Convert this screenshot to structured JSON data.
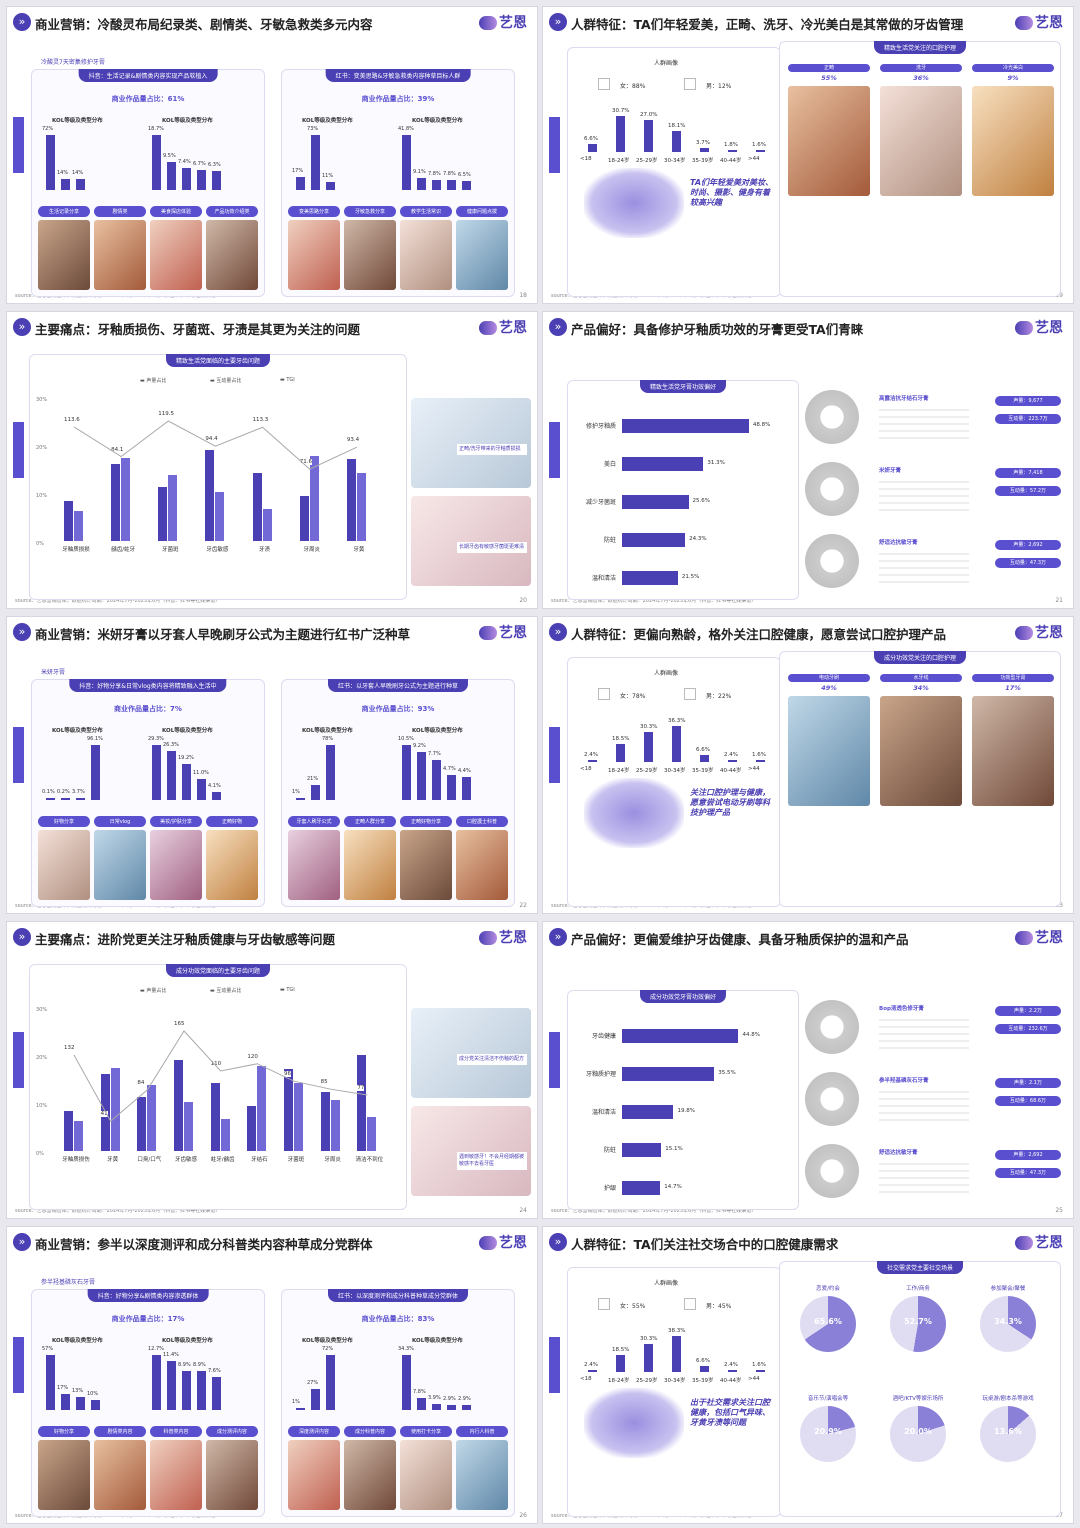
{
  "slides": [
    {
      "title": "商业营销：冷酸灵布局纪录类、剧情类、牙敏急救类多元内容",
      "page": "18",
      "sub": "冷酸灵7天密集修护牙膏",
      "left": {
        "pt": "抖音：生活记录&剧情类内容实现产品软植入",
        "share": "商业作品量占比：61%",
        "bars1": [
          "72%",
          "14%",
          "14%"
        ],
        "bars2": [
          "18.7%",
          "9.5%",
          "7.4%",
          "6.7%",
          "6.3%"
        ],
        "tags": [
          "生活记录分享",
          "剧情类",
          "美食探店体验",
          "产品功效介绍类"
        ]
      },
      "right": {
        "pt": "红书：变美思路&牙敏急救类内容种草目标人群",
        "share": "商业作品量占比：39%",
        "bars1": [
          "17%",
          "73%",
          "11%"
        ],
        "bars2": [
          "41.8%",
          "9.1%",
          "7.8%",
          "7.8%",
          "6.5%"
        ],
        "tags": [
          "变美思路分享",
          "牙敏急救分享",
          "教学生活常识",
          "健康问题点拨"
        ]
      }
    },
    {
      "title": "人群特征：TA们年轻爱美，正畸、洗牙、冷光美白是其常做的牙齿管理",
      "page": "19",
      "female": "女：88%",
      "male": "男：12%",
      "age_vals": [
        "6.6%",
        "30.7%",
        "27.0%",
        "18.1%",
        "3.7%",
        "1.8%",
        "1.6%"
      ],
      "age_labels": [
        "<18",
        "18-24岁",
        "25-29岁",
        "30-34岁",
        "35-39岁",
        "40-44岁",
        ">44"
      ],
      "hl": "TA们年轻爱美对美妆、时尚、摄影、健身有着较高兴趣",
      "right_title": "精致生活党关注的口腔护理",
      "tabs": [
        "正畸",
        "洗牙",
        "冷光美白"
      ],
      "pcts": [
        "55%",
        "36%",
        "9%"
      ],
      "portrait": "人群画像"
    },
    {
      "title": "主要痛点：牙釉质损伤、牙菌斑、牙渍是其更为关注的问题",
      "page": "20",
      "chart_title": "精致生活党面临的主要牙齿问题",
      "legend": [
        "声量占比",
        "互动量占比",
        "TGI"
      ],
      "cats": [
        "牙釉质损损",
        "龋齿/蛀牙",
        "牙菌斑",
        "牙齿敏感",
        "牙渍",
        "牙周炎",
        "牙黄"
      ],
      "tgi": [
        "113.6",
        "84.1",
        "119.5",
        "94.4",
        "113.3",
        "71.6",
        "93.4"
      ],
      "side_cap1": "正畸/洗牙带来的牙釉质损损",
      "side_cap2": "长期牙齿有敏感牙菌斑更难清"
    },
    {
      "title": "产品偏好：具备修护牙釉质功效的牙膏更受TA们青睐",
      "page": "21",
      "chart_title": "精致生活党牙膏功效偏好",
      "rows": [
        {
          "l": "修护牙釉质",
          "v": "48.8%",
          "n": 48.8
        },
        {
          "l": "美白",
          "v": "31.3%",
          "n": 31.3
        },
        {
          "l": "减少牙菌斑",
          "v": "25.6%",
          "n": 25.6
        },
        {
          "l": "防蛀",
          "v": "24.3%",
          "n": 24.3
        },
        {
          "l": "温和清洁",
          "v": "21.5%",
          "n": 21.5
        }
      ],
      "prods": [
        {
          "t": "高露洁抗牙结石牙膏",
          "s": "声量：9,677",
          "i": "互动量：223.7万"
        },
        {
          "t": "米妍牙膏",
          "s": "声量：7,418",
          "i": "互动量：57.2万"
        },
        {
          "t": "舒适达抗敏牙膏",
          "s": "声量：2,692",
          "i": "互动量：47.3万"
        }
      ]
    },
    {
      "title": "商业营销：米妍牙膏以牙套人早晚刷牙公式为主题进行红书广泛种草",
      "page": "22",
      "sub": "米妍牙膏",
      "left": {
        "pt": "抖音：好物分享&日常vlog类内容将精致融入生活中",
        "share": "商业作品量占比：7%",
        "bars1": [
          "0.1%",
          "0.2%",
          "3.7%",
          "96.1%"
        ],
        "bars2": [
          "29.3%",
          "26.3%",
          "19.2%",
          "11.0%",
          "4.1%"
        ],
        "tags": [
          "好物分享",
          "日常vlog",
          "美妆/护肤分享",
          "正畸好物"
        ]
      },
      "right": {
        "pt": "红书：以牙套人早晚刷牙公式为主题进行种草",
        "share": "商业作品量占比：93%",
        "bars1": [
          "1%",
          "21%",
          "78%"
        ],
        "bars2": [
          "10.5%",
          "9.2%",
          "7.7%",
          "4.7%",
          "4.4%"
        ],
        "tags": [
          "牙套人刷牙公式",
          "正畸人群分享",
          "正畸好物分享",
          "口腔護士科普"
        ]
      }
    },
    {
      "title": "人群特征：更偏向熟龄，格外关注口腔健康，愿意尝试口腔护理产品",
      "page": "23",
      "female": "女：78%",
      "male": "男：22%",
      "age_vals": [
        "2.4%",
        "18.5%",
        "30.3%",
        "36.3%",
        "6.6%",
        "2.4%",
        "1.6%"
      ],
      "age_labels": [
        "<18",
        "18-24岁",
        "25-29岁",
        "30-34岁",
        "35-39岁",
        "40-44岁",
        ">44"
      ],
      "hl": "关注口腔护理与健康，愿意尝试电动牙刷等科技护理产品",
      "right_title": "成分功效党关注的口腔护理",
      "tabs": [
        "电动牙刷",
        "水牙线",
        "功效型牙膏"
      ],
      "pcts": [
        "49%",
        "34%",
        "17%"
      ],
      "portrait": "人群画像"
    },
    {
      "title": "主要痛点：进阶党更关注牙釉质健康与牙齿敏感等问题",
      "page": "24",
      "chart_title": "成分功效党面临的主要牙齿问题",
      "legend": [
        "声量占比",
        "互动量占比",
        "TGI"
      ],
      "cats": [
        "牙釉质损伤",
        "牙黄",
        "口臭/口气",
        "牙齿敏感",
        "蛀牙/龋齿",
        "牙结石",
        "牙菌斑",
        "牙周炎",
        "清洁不到位"
      ],
      "tgi": [
        "132",
        "41",
        "84",
        "165",
        "110",
        "120",
        "96",
        "85",
        "77"
      ],
      "side_cap1": "成分党关注清洁不伤釉的配方",
      "side_cap2": "遇到敏感牙！不会月经期都被敏感不去看牙医"
    },
    {
      "title": "产品偏好：更偏爱维护牙齿健康、具备牙釉质保护的温和产品",
      "page": "25",
      "chart_title": "成分功效党牙膏功效偏好",
      "rows": [
        {
          "l": "牙齿健康",
          "v": "44.8%",
          "n": 44.8
        },
        {
          "l": "牙釉质护理",
          "v": "35.5%",
          "n": 35.5
        },
        {
          "l": "温和清洁",
          "v": "19.8%",
          "n": 19.8
        },
        {
          "l": "防蛀",
          "v": "15.1%",
          "n": 15.1
        },
        {
          "l": "护龈",
          "v": "14.7%",
          "n": 14.7
        }
      ],
      "prods": [
        {
          "t": "Bop清透色修牙膏",
          "s": "声量：2.2万",
          "i": "互动量：232.6万"
        },
        {
          "t": "参半羟基磷灰石牙膏",
          "s": "声量：2.1万",
          "i": "互动量：68.6万"
        },
        {
          "t": "舒适达抗敏牙膏",
          "s": "声量：2,692",
          "i": "互动量：47.3万"
        }
      ]
    },
    {
      "title": "商业营销：参半以深度测评和成分科普类内容种草成分党群体",
      "page": "26",
      "sub": "参半羟基磷灰石牙膏",
      "left": {
        "pt": "抖音：好物分享&剧情类内容渗透群体",
        "share": "商业作品量占比：17%",
        "bars1": [
          "57%",
          "17%",
          "13%",
          "10%"
        ],
        "bars2": [
          "12.7%",
          "11.4%",
          "8.9%",
          "8.9%",
          "7.6%"
        ],
        "tags": [
          "好物分享",
          "剧情类内容",
          "科普类内容",
          "成分测评内容"
        ]
      },
      "right": {
        "pt": "红书：以深度测评和成分科普种草成分党群体",
        "share": "商业作品量占比：83%",
        "bars1": [
          "1%",
          "27%",
          "72%"
        ],
        "bars2": [
          "34.3%",
          "7.8%",
          "3.9%",
          "2.9%",
          "2.9%"
        ],
        "tags": [
          "深度测评内容",
          "成分科普内容",
          "使用打卡分享",
          "内行人科普"
        ]
      }
    },
    {
      "title": "人群特征：TA们关注社交场合中的口腔健康需求",
      "page": "27",
      "female": "女：55%",
      "male": "男：45%",
      "age_vals": [
        "2.4%",
        "18.5%",
        "30.3%",
        "38.3%",
        "6.6%",
        "2.4%",
        "1.6%"
      ],
      "age_labels": [
        "<18",
        "18-24岁",
        "25-29岁",
        "30-34岁",
        "35-39岁",
        "40-44岁",
        ">44"
      ],
      "hl": "出于社交需求关注口腔健康，包括口气异味、牙黄牙渍等问题",
      "right_title": "社交需求党主要社交场景",
      "portrait": "人群画像",
      "pies": [
        {
          "l": "恋爱/约会",
          "v": "65.6%",
          "n": 65.6
        },
        {
          "l": "工作/商务",
          "v": "52.7%",
          "n": 52.7
        },
        {
          "l": "参加聚会/聚餐",
          "v": "34.3%",
          "n": 34.3
        },
        {
          "l": "音乐节/演唱会等",
          "v": "20.9%",
          "n": 20.9
        },
        {
          "l": "酒吧/KTV等娱乐场所",
          "v": "20.0%",
          "n": 20.0
        },
        {
          "l": "玩桌游/剧本杀等游戏",
          "v": "13.6%",
          "n": 13.6
        }
      ]
    }
  ],
  "common": {
    "source": "source：艺恩营销智库，数据统计周期：2024年7月-2025年6月（抖音、红书等社媒渠道）",
    "logo": "艺恩",
    "kol_label": "KOL等级及类型分布"
  },
  "colors": {
    "accent": "#4b3fb4",
    "accent2": "#5a4fcf"
  }
}
